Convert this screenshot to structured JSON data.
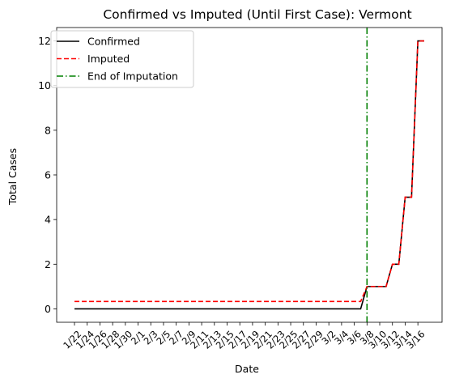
{
  "chart_data": {
    "type": "line",
    "title": "Confirmed vs Imputed (Until First Case): Vermont",
    "xlabel": "Date",
    "ylabel": "Total Cases",
    "x": [
      "1/22",
      "1/23",
      "1/24",
      "1/25",
      "1/26",
      "1/27",
      "1/28",
      "1/29",
      "1/30",
      "1/31",
      "2/1",
      "2/2",
      "2/3",
      "2/4",
      "2/5",
      "2/6",
      "2/7",
      "2/8",
      "2/9",
      "2/10",
      "2/11",
      "2/12",
      "2/13",
      "2/14",
      "2/15",
      "2/16",
      "2/17",
      "2/18",
      "2/19",
      "2/20",
      "2/21",
      "2/22",
      "2/23",
      "2/24",
      "2/25",
      "2/26",
      "2/27",
      "2/28",
      "2/29",
      "3/1",
      "3/2",
      "3/3",
      "3/4",
      "3/5",
      "3/6",
      "3/7",
      "3/8",
      "3/9",
      "3/10",
      "3/11",
      "3/12",
      "3/13",
      "3/14",
      "3/15",
      "3/16",
      "3/17"
    ],
    "xtick_labels": [
      "1/22",
      "1/24",
      "1/26",
      "1/28",
      "1/30",
      "2/1",
      "2/3",
      "2/5",
      "2/7",
      "2/9",
      "2/11",
      "2/13",
      "2/15",
      "2/17",
      "2/19",
      "2/21",
      "2/23",
      "2/25",
      "2/27",
      "2/29",
      "3/2",
      "3/4",
      "3/6",
      "3/8",
      "3/10",
      "3/12",
      "3/14",
      "3/16"
    ],
    "yticks": [
      0,
      2,
      4,
      6,
      8,
      10,
      12
    ],
    "ylim": [
      -0.6,
      12.6
    ],
    "series": [
      {
        "name": "Confirmed",
        "color": "#000000",
        "style": "solid",
        "values": [
          0,
          0,
          0,
          0,
          0,
          0,
          0,
          0,
          0,
          0,
          0,
          0,
          0,
          0,
          0,
          0,
          0,
          0,
          0,
          0,
          0,
          0,
          0,
          0,
          0,
          0,
          0,
          0,
          0,
          0,
          0,
          0,
          0,
          0,
          0,
          0,
          0,
          0,
          0,
          0,
          0,
          0,
          0,
          0,
          0,
          0,
          1,
          1,
          1,
          1,
          2,
          2,
          5,
          5,
          12,
          12
        ]
      },
      {
        "name": "Imputed",
        "color": "#ff0000",
        "style": "dashed",
        "values": [
          0.33,
          0.33,
          0.33,
          0.33,
          0.33,
          0.33,
          0.33,
          0.33,
          0.33,
          0.33,
          0.33,
          0.33,
          0.33,
          0.33,
          0.33,
          0.33,
          0.33,
          0.33,
          0.33,
          0.33,
          0.33,
          0.33,
          0.33,
          0.33,
          0.33,
          0.33,
          0.33,
          0.33,
          0.33,
          0.33,
          0.33,
          0.33,
          0.33,
          0.33,
          0.33,
          0.33,
          0.33,
          0.33,
          0.33,
          0.33,
          0.33,
          0.33,
          0.33,
          0.33,
          0.33,
          0.33,
          1,
          1,
          1,
          1,
          2,
          2,
          5,
          5,
          12,
          12
        ]
      }
    ],
    "vline": {
      "name": "End of Imputation",
      "x": "3/8",
      "color": "#008000",
      "style": "dashdot"
    },
    "legend": "top-left",
    "grid": false
  }
}
